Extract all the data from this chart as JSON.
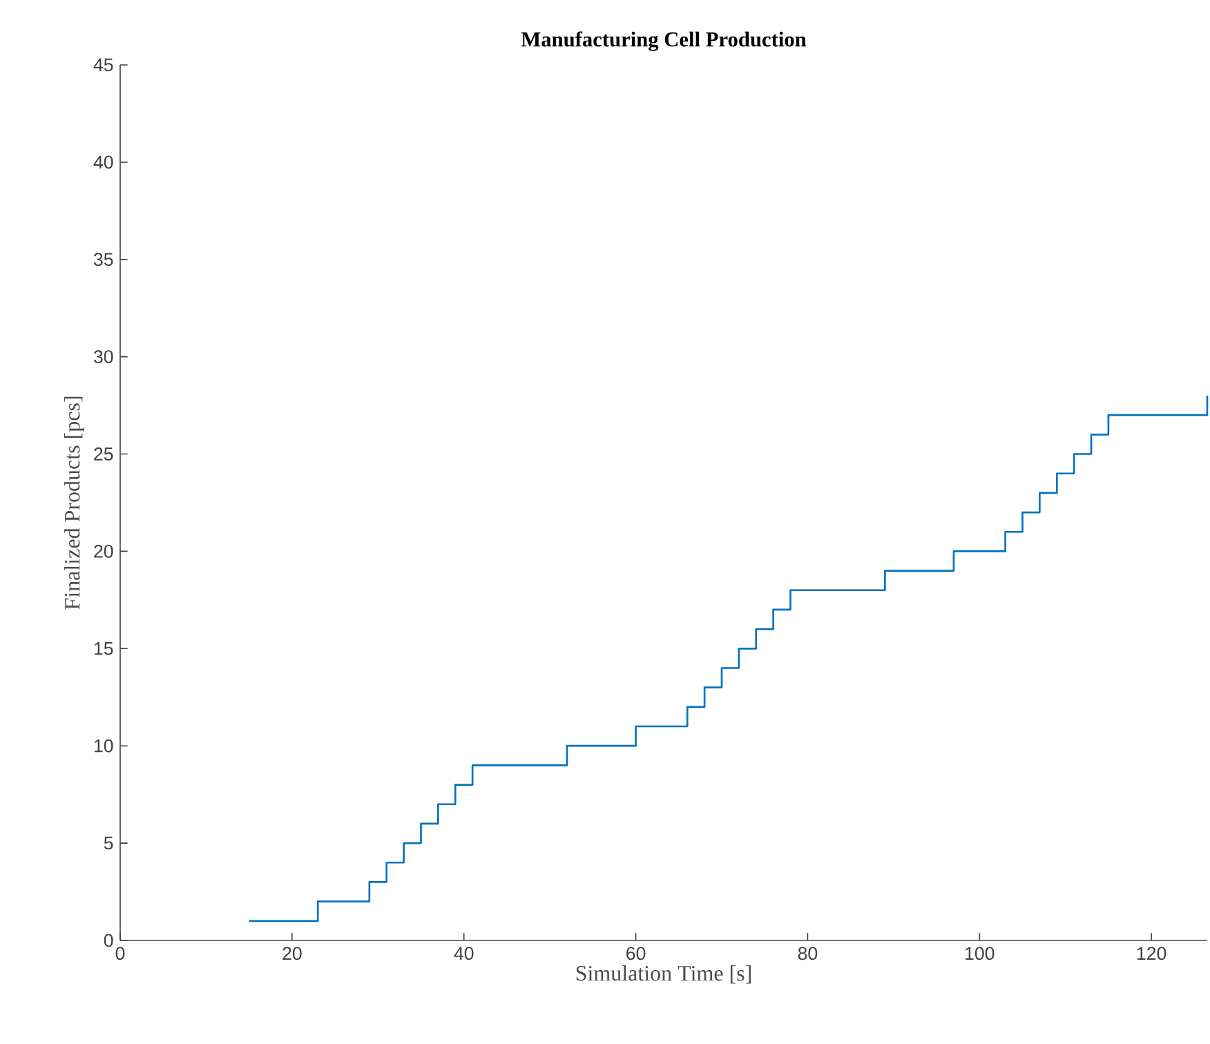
{
  "chart_data": {
    "type": "step",
    "title": "Manufacturing Cell Production",
    "xlabel": "Simulation Time [s]",
    "ylabel": "Finalized Products [pcs]",
    "x": [
      15,
      23,
      29,
      31,
      33,
      35,
      37,
      39,
      41,
      52,
      60,
      66,
      68,
      70,
      72,
      74,
      76,
      78,
      89,
      97,
      103,
      105,
      107,
      109,
      111,
      113,
      115,
      126.5
    ],
    "series": [
      {
        "color": "#0072bd",
        "values": [
          1,
          2,
          3,
          4,
          5,
          6,
          7,
          8,
          9,
          10,
          11,
          12,
          13,
          14,
          15,
          16,
          17,
          18,
          19,
          20,
          21,
          22,
          23,
          24,
          25,
          26,
          27,
          28
        ]
      }
    ],
    "xlim": [
      0,
      126.5
    ],
    "ylim": [
      0,
      45
    ],
    "xticks": [
      0,
      20,
      40,
      60,
      80,
      100,
      120
    ],
    "yticks": [
      0,
      5,
      10,
      15,
      20,
      25,
      30,
      35,
      40,
      45
    ]
  }
}
